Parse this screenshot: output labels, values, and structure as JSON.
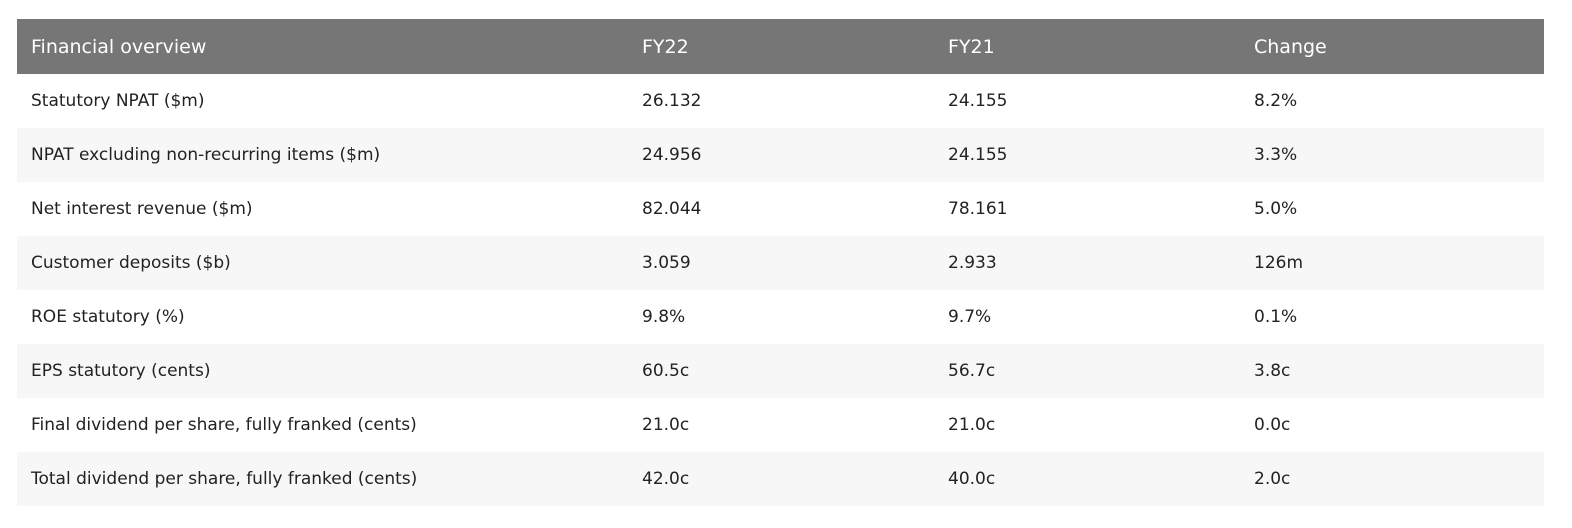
{
  "table": {
    "headers": [
      "Financial overview",
      "FY22",
      "FY21",
      "Change"
    ],
    "rows": [
      [
        "Statutory NPAT ($m)",
        "26.132",
        "24.155",
        "8.2%"
      ],
      [
        "NPAT excluding non-recurring items ($m)",
        "24.956",
        "24.155",
        "3.3%"
      ],
      [
        "Net interest revenue ($m)",
        "82.044",
        "78.161",
        "5.0%"
      ],
      [
        "Customer deposits ($b)",
        "3.059",
        "2.933",
        "126m"
      ],
      [
        "ROE statutory (%)",
        "9.8%",
        "9.7%",
        "0.1%"
      ],
      [
        "EPS statutory (cents)",
        "60.5c",
        "56.7c",
        "3.8c"
      ],
      [
        "Final dividend per share, fully franked (cents)",
        "21.0c",
        "21.0c",
        "0.0c"
      ],
      [
        "Total dividend per share, fully franked (cents)",
        "42.0c",
        "40.0c",
        "2.0c"
      ]
    ]
  },
  "colors": {
    "header_bg": "#767676",
    "header_text": "#ffffff",
    "row_alt_bg": "#f7f7f7"
  }
}
